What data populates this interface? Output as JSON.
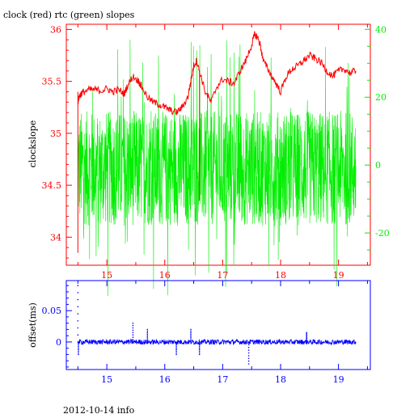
{
  "title": "clock (red) rtc (green) slopes",
  "footer": "2012-10-14 info",
  "colors": {
    "clock": "#ff0000",
    "rtc": "#00ee00",
    "offset": "#0000ff",
    "frame_top": "#ff0000",
    "frame_bottom": "#0000ff"
  },
  "chart_data": [
    {
      "type": "line",
      "title": "clock (red) rtc (green) slopes",
      "ylabel": "clockslope",
      "xlim": [
        14.3,
        19.55
      ],
      "ylim": [
        33.73,
        36.05
      ],
      "y2lim": [
        -29.5,
        41.5
      ],
      "grid": false,
      "legend": "none",
      "x_ticks": [
        "15",
        "16",
        "17",
        "18",
        "19"
      ],
      "y_ticks": [
        "34",
        "34.5",
        "35",
        "35.5",
        "36"
      ],
      "y2_ticks": [
        "-20",
        "0",
        "20",
        "40"
      ],
      "series": [
        {
          "name": "clock",
          "axis": "left",
          "color": "#ff0000",
          "x": [
            14.5,
            14.52,
            14.55,
            14.6,
            14.7,
            14.8,
            14.9,
            15.0,
            15.1,
            15.2,
            15.3,
            15.35,
            15.45,
            15.55,
            15.6,
            15.7,
            15.8,
            15.9,
            16.0,
            16.1,
            16.2,
            16.3,
            16.4,
            16.45,
            16.5,
            16.55,
            16.6,
            16.7,
            16.8,
            16.9,
            17.0,
            17.1,
            17.2,
            17.3,
            17.4,
            17.5,
            17.55,
            17.6,
            17.65,
            17.7,
            17.8,
            17.9,
            18.0,
            18.1,
            18.2,
            18.3,
            18.4,
            18.5,
            18.6,
            18.7,
            18.8,
            18.9,
            19.0,
            19.1,
            19.2,
            19.3
          ],
          "values": [
            35.3,
            35.35,
            35.38,
            35.4,
            35.42,
            35.42,
            35.41,
            35.43,
            35.4,
            35.42,
            35.38,
            35.45,
            35.55,
            35.5,
            35.45,
            35.35,
            35.3,
            35.28,
            35.25,
            35.22,
            35.2,
            35.25,
            35.35,
            35.5,
            35.65,
            35.7,
            35.6,
            35.4,
            35.3,
            35.45,
            35.52,
            35.5,
            35.48,
            35.6,
            35.7,
            35.85,
            35.95,
            35.93,
            35.85,
            35.7,
            35.6,
            35.5,
            35.4,
            35.55,
            35.62,
            35.65,
            35.7,
            35.75,
            35.72,
            35.68,
            35.6,
            35.55,
            35.6,
            35.62,
            35.58,
            35.6
          ]
        },
        {
          "name": "rtc",
          "axis": "right",
          "color": "#00ee00",
          "x": [
            14.5,
            15.0,
            15.5,
            16.0,
            16.5,
            17.0,
            17.5,
            18.0,
            18.5,
            19.0,
            19.3
          ],
          "values": [
            -1,
            -1,
            -1,
            -1,
            -1,
            -1,
            -1,
            -1,
            -1,
            -1,
            -1
          ],
          "envelope": [
            -18,
            16
          ]
        }
      ]
    },
    {
      "type": "scatter",
      "ylabel": "offset(ms)",
      "xlim": [
        14.3,
        19.55
      ],
      "ylim": [
        -0.044,
        0.098
      ],
      "grid": false,
      "legend": "none",
      "x_ticks": [
        "15",
        "16",
        "17",
        "18",
        "19"
      ],
      "y_ticks": [
        "0",
        "0.05"
      ],
      "series": [
        {
          "name": "offset",
          "color": "#0000ff",
          "x": [
            14.5,
            14.51,
            15.45,
            15.7,
            16.2,
            16.45,
            16.6,
            17.45,
            18.45
          ],
          "values": [
            0.09,
            -0.02,
            0.03,
            0.02,
            -0.02,
            0.02,
            -0.02,
            -0.035,
            0.015
          ]
        }
      ]
    }
  ]
}
